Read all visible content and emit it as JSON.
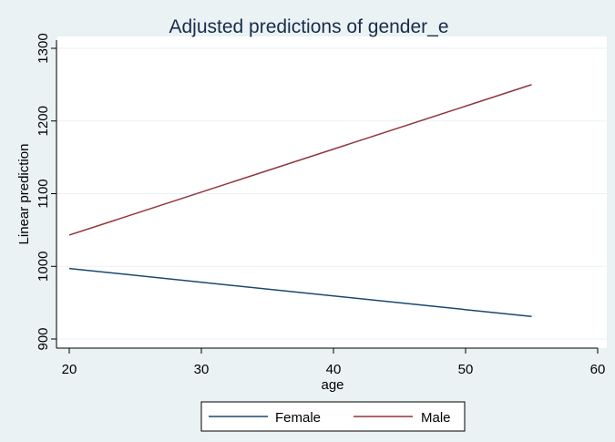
{
  "chart_data": {
    "type": "line",
    "title": "Adjusted predictions of gender_e",
    "xlabel": "age",
    "ylabel": "Linear prediction",
    "xlim": [
      20,
      60
    ],
    "ylim": [
      900,
      1300
    ],
    "xticks": [
      20,
      30,
      40,
      50,
      60
    ],
    "yticks": [
      900,
      1000,
      1100,
      1200,
      1300
    ],
    "grid": true,
    "legend_position": "bottom",
    "series": [
      {
        "name": "Female",
        "color": "#1a476f",
        "x": [
          20,
          55
        ],
        "y": [
          997,
          931
        ]
      },
      {
        "name": "Male",
        "color": "#90353b",
        "x": [
          20,
          55
        ],
        "y": [
          1043,
          1250
        ]
      }
    ]
  }
}
